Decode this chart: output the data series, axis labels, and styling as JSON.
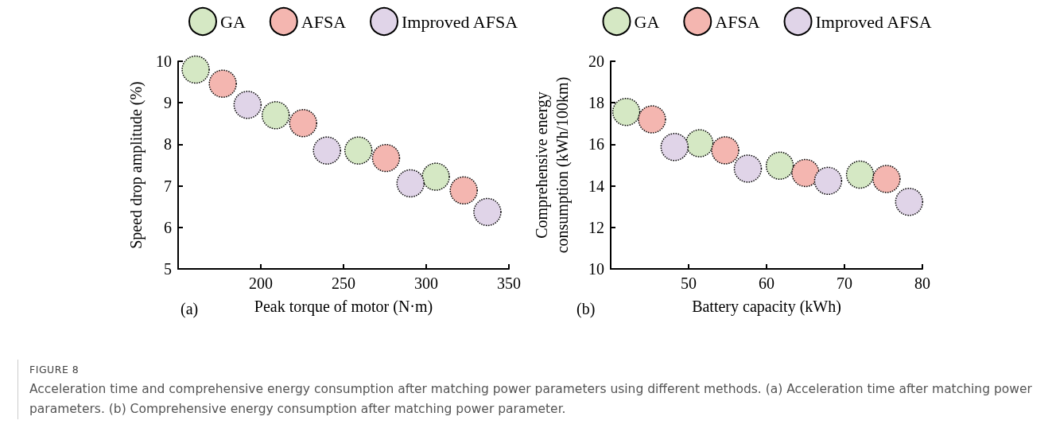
{
  "chart_data": [
    {
      "type": "scatter",
      "xlabel": "Peak torque of motor (N·m)",
      "ylabel": "Speed drop amplitude (%)",
      "xlim": [
        150,
        350
      ],
      "xticks": [
        200,
        250,
        300,
        350
      ],
      "ylim": [
        5,
        10
      ],
      "yticks": [
        5,
        6,
        7,
        8,
        9,
        10
      ],
      "grid": false,
      "legend": "top",
      "marker": "circle",
      "annotations": [
        "(a)",
        "FIGURE 8",
        "Acceleration time and comprehensive energy consumption after matching power parameters using different methods. (a) Acceleration time after matching power parameters. (b) Comprehensive energy consumption after matching power parameter."
      ],
      "series": [
        {
          "name": "GA",
          "color": "#d5e8c4",
          "x": [
            160.6,
            209,
            259,
            305.8
          ],
          "values": [
            9.8,
            8.7,
            7.85,
            7.22
          ]
        },
        {
          "name": "AFSA",
          "color": "#f4b6b0",
          "x": [
            177,
            225.6,
            275.7,
            322.7
          ],
          "values": [
            9.46,
            8.51,
            7.67,
            6.89
          ]
        },
        {
          "name": "Improved AFSA",
          "color": "#e0d4e8",
          "x": [
            192,
            240,
            290.5,
            337
          ],
          "values": [
            8.95,
            7.85,
            7.06,
            6.37
          ]
        }
      ]
    },
    {
      "type": "scatter",
      "xlabel": "Battery capacity (kWh)",
      "ylabel": "Comprehensive energy\nconsumption (kWh/100km)",
      "xlim": [
        40,
        80
      ],
      "xticks": [
        50,
        60,
        70,
        80
      ],
      "ylim": [
        10,
        20
      ],
      "yticks": [
        10,
        12,
        14,
        16,
        18,
        20
      ],
      "grid": false,
      "legend": "top",
      "marker": "circle",
      "annotations": [
        "(b)"
      ],
      "series": [
        {
          "name": "GA",
          "color": "#d5e8c4",
          "x": [
            42.0,
            51.4,
            61.7,
            72.0
          ],
          "values": [
            17.56,
            16.05,
            14.97,
            14.54
          ]
        },
        {
          "name": "AFSA",
          "color": "#f4b6b0",
          "x": [
            45.3,
            54.7,
            65.0,
            75.4
          ],
          "values": [
            17.2,
            15.71,
            14.62,
            14.33
          ]
        },
        {
          "name": "Improved AFSA",
          "color": "#e0d4e8",
          "x": [
            48.2,
            57.6,
            67.9,
            78.3
          ],
          "values": [
            15.87,
            14.83,
            14.24,
            13.23
          ]
        }
      ]
    }
  ]
}
